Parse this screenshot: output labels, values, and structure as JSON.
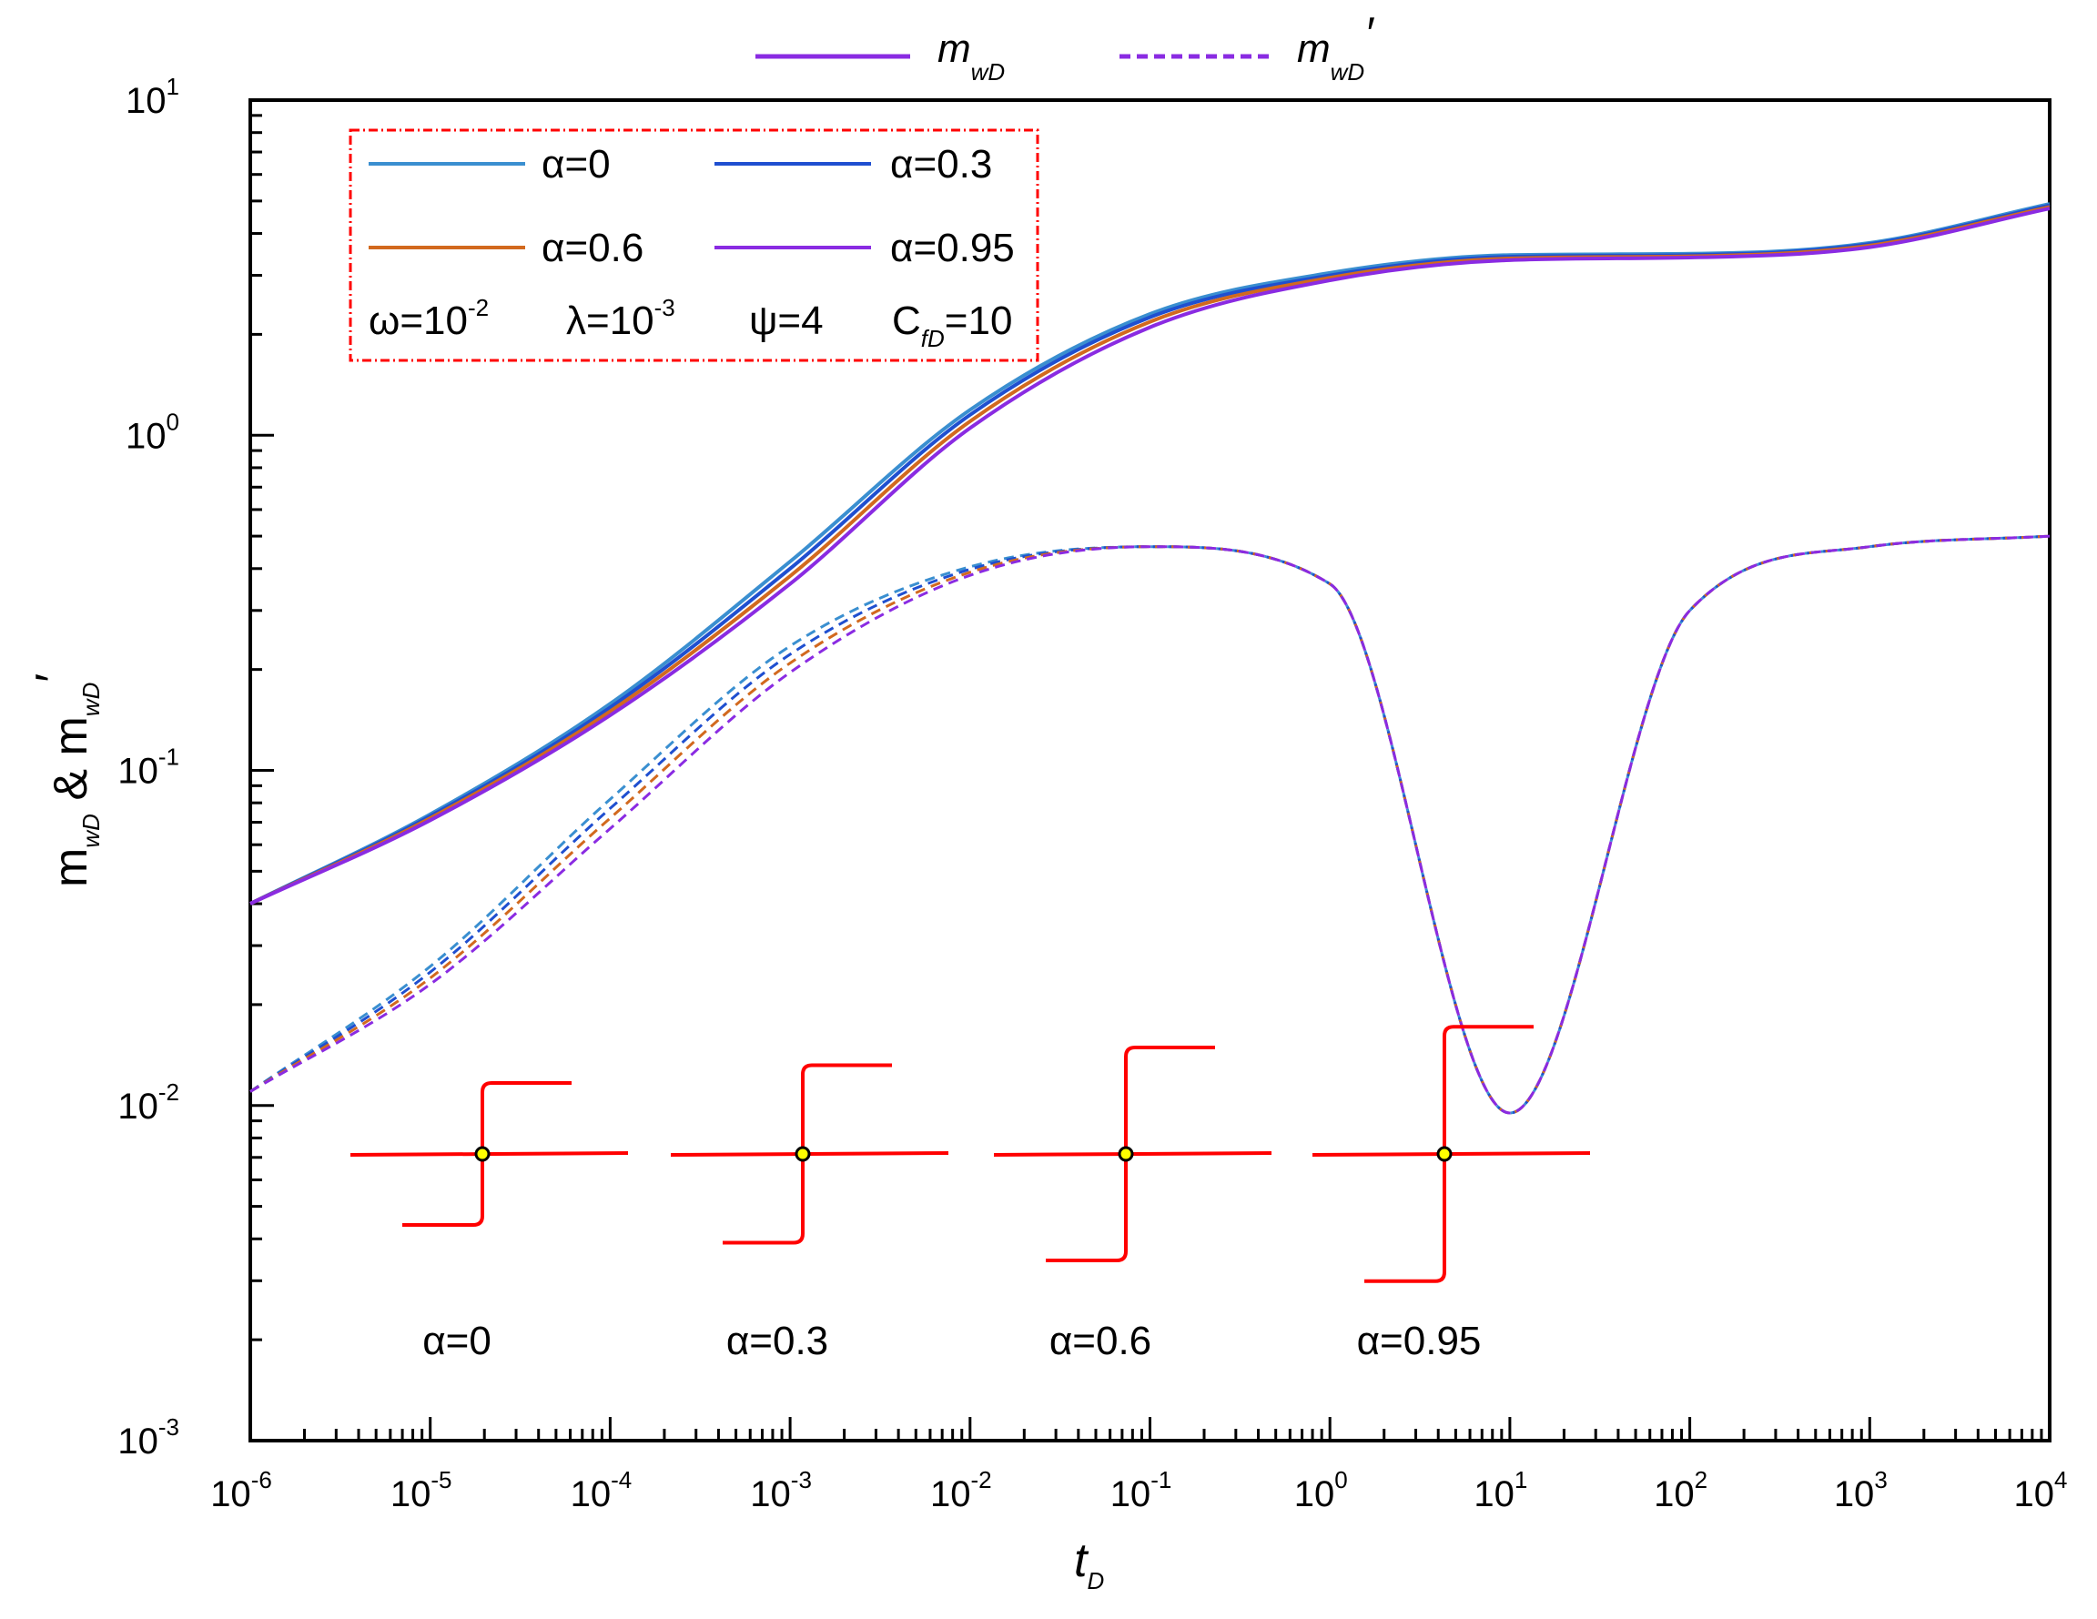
{
  "chart_data": {
    "type": "line",
    "x_scale": "log",
    "y_scale": "log",
    "xlim": [
      1e-06,
      10000.0
    ],
    "ylim": [
      0.001,
      10
    ],
    "xlabel": {
      "main": "t",
      "sub": "D"
    },
    "ylabel": {
      "main1": "m",
      "sub1": "wD",
      "amp": " & ",
      "main2": "m",
      "sub2": "wD",
      "prime": "′"
    },
    "x_ticks": [
      {
        "base": "10",
        "exp": "-6",
        "value": 1e-06
      },
      {
        "base": "10",
        "exp": "-5",
        "value": 1e-05
      },
      {
        "base": "10",
        "exp": "-4",
        "value": 0.0001
      },
      {
        "base": "10",
        "exp": "-3",
        "value": 0.001
      },
      {
        "base": "10",
        "exp": "-2",
        "value": 0.01
      },
      {
        "base": "10",
        "exp": "-1",
        "value": 0.1
      },
      {
        "base": "10",
        "exp": "0",
        "value": 1
      },
      {
        "base": "10",
        "exp": "1",
        "value": 10
      },
      {
        "base": "10",
        "exp": "2",
        "value": 100
      },
      {
        "base": "10",
        "exp": "3",
        "value": 1000
      },
      {
        "base": "10",
        "exp": "4",
        "value": 10000
      }
    ],
    "y_ticks": [
      {
        "base": "10",
        "exp": "-3",
        "value": 0.001
      },
      {
        "base": "10",
        "exp": "-2",
        "value": 0.01
      },
      {
        "base": "10",
        "exp": "-1",
        "value": 0.1
      },
      {
        "base": "10",
        "exp": "0",
        "value": 1
      },
      {
        "base": "10",
        "exp": "1",
        "value": 10
      }
    ],
    "top_legend": [
      {
        "style": "solid",
        "main": "m",
        "sub": "wD",
        "prime": ""
      },
      {
        "style": "dashed",
        "main": "m",
        "sub": "wD",
        "prime": "′"
      }
    ],
    "legend_box": {
      "entries": [
        {
          "label": "α=0",
          "color": "#3a8fd0"
        },
        {
          "label": "α=0.3",
          "color": "#1f4fd0"
        },
        {
          "label": "α=0.6",
          "color": "#d2691e"
        },
        {
          "label": "α=0.95",
          "color": "#8a2be2"
        }
      ],
      "params": [
        {
          "main": "ω=10",
          "sup": "-2",
          "sub": "",
          "tail": ""
        },
        {
          "main": "λ=10",
          "sup": "-3",
          "sub": "",
          "tail": ""
        },
        {
          "main": "ψ=4",
          "sup": "",
          "sub": "",
          "tail": ""
        },
        {
          "main": "C",
          "sup": "",
          "sub": "fD",
          "tail": "=10"
        }
      ]
    },
    "fracture_labels": [
      "α=0",
      "α=0.3",
      "α=0.6",
      "α=0.95"
    ],
    "fracture_alphas": [
      0,
      0.3,
      0.6,
      0.95
    ],
    "series_x": [
      1e-06,
      1e-05,
      0.0001,
      0.001,
      0.01,
      0.1,
      1,
      10,
      100,
      1000,
      10000
    ],
    "series": [
      {
        "name": "α=0 m_wD",
        "style": "solid",
        "color": "#3a8fd0",
        "y": [
          0.04,
          0.074,
          0.158,
          0.42,
          1.19,
          2.3,
          3.05,
          3.45,
          3.48,
          3.75,
          4.9
        ]
      },
      {
        "name": "α=0.3 m_wD",
        "style": "solid",
        "color": "#1f4fd0",
        "y": [
          0.04,
          0.073,
          0.154,
          0.4,
          1.15,
          2.25,
          3.0,
          3.41,
          3.45,
          3.72,
          4.85
        ]
      },
      {
        "name": "α=0.6 m_wD",
        "style": "solid",
        "color": "#d2691e",
        "y": [
          0.04,
          0.072,
          0.15,
          0.38,
          1.1,
          2.18,
          2.95,
          3.37,
          3.42,
          3.68,
          4.8
        ]
      },
      {
        "name": "α=0.95 m_wD",
        "style": "solid",
        "color": "#8a2be2",
        "y": [
          0.04,
          0.071,
          0.146,
          0.36,
          1.05,
          2.1,
          2.9,
          3.33,
          3.39,
          3.64,
          4.75
        ]
      },
      {
        "name": "α=0 m_wD′",
        "style": "dashed",
        "color": "#3a8fd0",
        "y": [
          0.011,
          0.026,
          0.082,
          0.235,
          0.405,
          0.465,
          0.36,
          0.0095,
          0.3,
          0.465,
          0.5
        ]
      },
      {
        "name": "α=0.3 m_wD′",
        "style": "dashed",
        "color": "#1f4fd0",
        "y": [
          0.011,
          0.025,
          0.077,
          0.222,
          0.398,
          0.465,
          0.36,
          0.0095,
          0.3,
          0.465,
          0.5
        ]
      },
      {
        "name": "α=0.6 m_wD′",
        "style": "dashed",
        "color": "#d2691e",
        "y": [
          0.011,
          0.024,
          0.072,
          0.209,
          0.39,
          0.465,
          0.36,
          0.0095,
          0.3,
          0.465,
          0.5
        ]
      },
      {
        "name": "α=0.95 m_wD′",
        "style": "dashed",
        "color": "#8a2be2",
        "y": [
          0.011,
          0.023,
          0.067,
          0.196,
          0.382,
          0.465,
          0.36,
          0.0095,
          0.3,
          0.465,
          0.5
        ]
      }
    ]
  }
}
